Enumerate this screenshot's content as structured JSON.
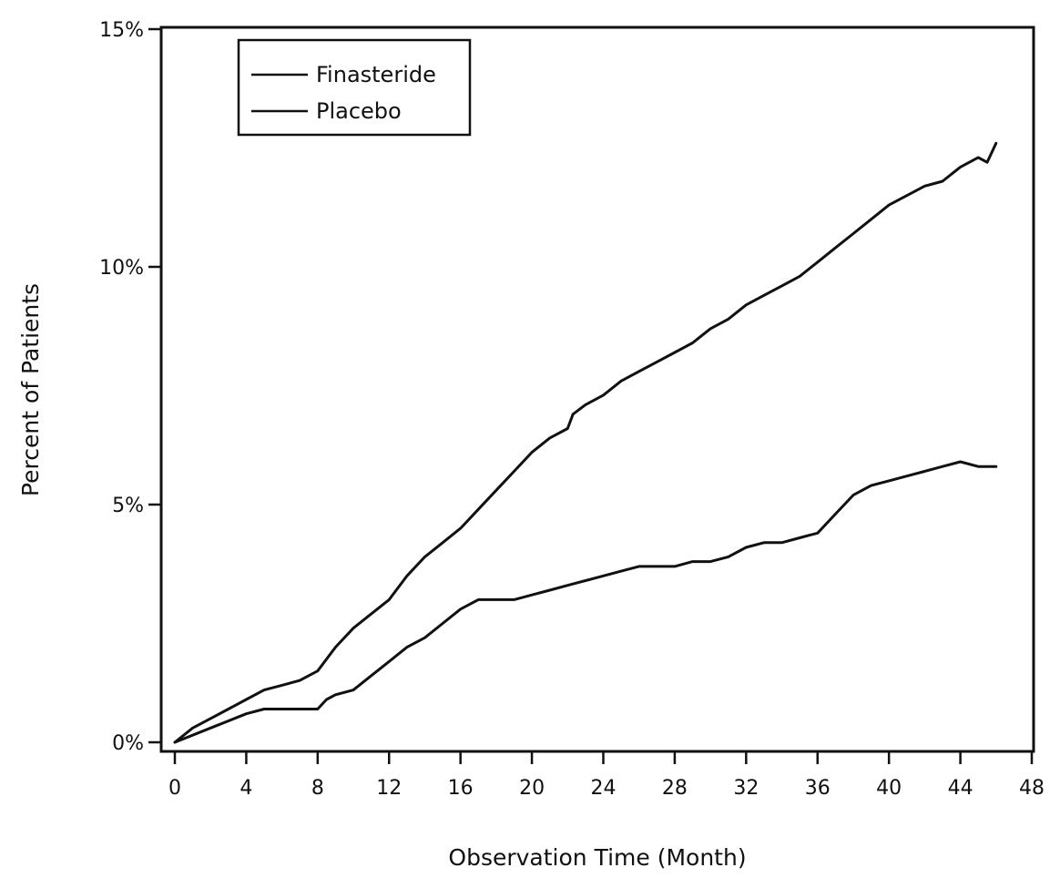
{
  "chart_data": {
    "type": "line",
    "title": "",
    "xlabel": "Observation Time  (Month)",
    "ylabel": "Percent of Patients",
    "xlim": [
      0,
      48
    ],
    "ylim": [
      0,
      15
    ],
    "x_ticks": [
      "0",
      "4",
      "8",
      "12",
      "16",
      "20",
      "24",
      "28",
      "32",
      "36",
      "40",
      "44",
      "48"
    ],
    "y_ticks": [
      "0%",
      "5%",
      "10%",
      "15%"
    ],
    "grid": false,
    "legend_position": "top-left",
    "series": [
      {
        "name": "Finasteride",
        "color": "#111111",
        "line_style": "solid",
        "x": [
          0,
          2,
          4,
          5,
          6,
          7,
          8,
          8.5,
          9,
          10,
          11,
          12,
          13,
          14,
          15,
          16,
          17,
          18,
          19,
          20,
          21,
          22,
          23,
          24,
          25,
          26,
          27,
          28,
          29,
          30,
          31,
          32,
          33,
          34,
          35,
          36,
          37,
          38,
          39,
          40,
          41,
          42,
          43,
          44,
          45,
          46
        ],
        "y": [
          0,
          0.3,
          0.6,
          0.7,
          0.7,
          0.7,
          0.7,
          0.9,
          1.0,
          1.1,
          1.4,
          1.7,
          2.0,
          2.2,
          2.5,
          2.8,
          3.0,
          3.0,
          3.0,
          3.1,
          3.2,
          3.3,
          3.4,
          3.5,
          3.6,
          3.7,
          3.7,
          3.7,
          3.8,
          3.8,
          3.9,
          4.1,
          4.2,
          4.2,
          4.3,
          4.4,
          4.8,
          5.2,
          5.4,
          5.5,
          5.6,
          5.7,
          5.8,
          5.9,
          5.8,
          5.8
        ]
      },
      {
        "name": "Placebo",
        "color": "#111111",
        "line_style": "solid",
        "x": [
          0,
          1,
          2,
          3,
          4,
          5,
          6,
          7,
          8,
          9,
          10,
          11,
          12,
          13,
          14,
          15,
          16,
          17,
          18,
          19,
          20,
          21,
          22,
          22.3,
          23,
          24,
          25,
          26,
          27,
          28,
          29,
          30,
          31,
          32,
          33,
          34,
          35,
          36,
          37,
          38,
          39,
          40,
          41,
          42,
          43,
          44,
          45,
          45.5,
          46
        ],
        "y": [
          0,
          0.3,
          0.5,
          0.7,
          0.9,
          1.1,
          1.2,
          1.3,
          1.5,
          2.0,
          2.4,
          2.7,
          3.0,
          3.5,
          3.9,
          4.2,
          4.5,
          4.9,
          5.3,
          5.7,
          6.1,
          6.4,
          6.6,
          6.9,
          7.1,
          7.3,
          7.6,
          7.8,
          8.0,
          8.2,
          8.4,
          8.7,
          8.9,
          9.2,
          9.4,
          9.6,
          9.8,
          10.1,
          10.4,
          10.7,
          11.0,
          11.3,
          11.5,
          11.7,
          11.8,
          12.1,
          12.3,
          12.2,
          12.6
        ]
      }
    ]
  }
}
